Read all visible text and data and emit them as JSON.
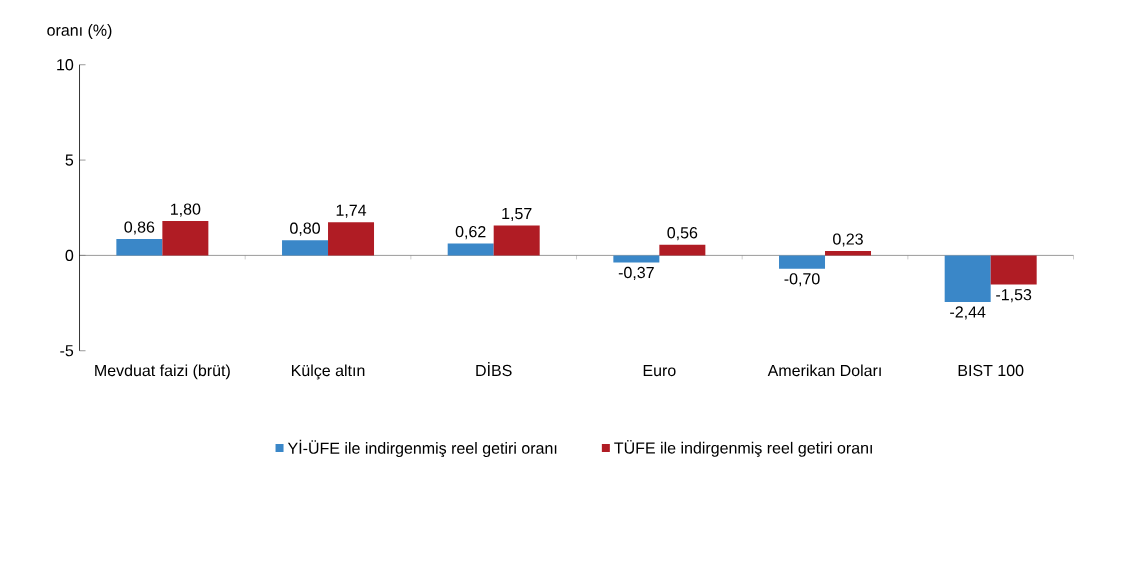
{
  "chart_data": {
    "type": "bar",
    "ylabel": "oranı (%)",
    "categories": [
      "Mevduat faizi (brüt)",
      "Külçe altın",
      "DİBS",
      "Euro",
      "Amerikan Doları",
      "BIST 100"
    ],
    "series": [
      {
        "name": "Yİ-ÜFE ile indirgenmiş reel getiri oranı",
        "color": "#3a87c8",
        "values": [
          0.86,
          0.8,
          0.62,
          -0.37,
          -0.7,
          -2.44
        ],
        "value_labels": [
          "0,86",
          "0,80",
          "0,62",
          "-0,37",
          "-0,70",
          "-2,44"
        ]
      },
      {
        "name": "TÜFE ile indirgenmiş reel getiri oranı",
        "color": "#b01c24",
        "values": [
          1.8,
          1.74,
          1.57,
          0.56,
          0.23,
          -1.53
        ],
        "value_labels": [
          "1,80",
          "1,74",
          "1,57",
          "0,56",
          "0,23",
          "-1,53"
        ]
      }
    ],
    "ylim": [
      -5,
      10
    ],
    "yticks": [
      -5,
      0,
      5,
      10
    ],
    "legend": "bottom"
  }
}
